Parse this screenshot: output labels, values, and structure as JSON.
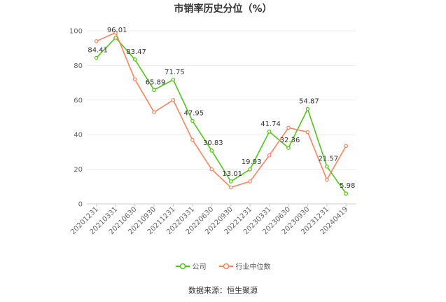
{
  "chart_data": {
    "type": "line",
    "title": "市销率历史分位（%）",
    "categories": [
      "20201231",
      "20210331",
      "20210630",
      "20210930",
      "20211231",
      "20220331",
      "20220630",
      "20220930",
      "20221231",
      "20230331",
      "20230630",
      "20230930",
      "20231231",
      "20240419"
    ],
    "ylim": [
      0,
      100
    ],
    "yticks": [
      0,
      20,
      40,
      60,
      80,
      100
    ],
    "grid": true,
    "legend_position": "bottom",
    "series": [
      {
        "name": "公司",
        "color": "#52c41a",
        "values": [
          84.41,
          96.01,
          83.47,
          65.89,
          71.75,
          47.95,
          30.83,
          13.01,
          19.93,
          41.74,
          32.36,
          54.87,
          21.57,
          5.98
        ],
        "labels": [
          "84.41",
          "96.01",
          "83.47",
          "65.89",
          "71.75",
          "47.95",
          "30.83",
          "13.01",
          "19.93",
          "41.74",
          "32.36",
          "54.87",
          "21.57",
          "5.98"
        ]
      },
      {
        "name": "行业中位数",
        "color": "#f5845f",
        "values": [
          94,
          99,
          72,
          53,
          60,
          37,
          20,
          9.5,
          13,
          28,
          44,
          41.5,
          14,
          33.5
        ]
      }
    ]
  },
  "footer": {
    "source": "数据来源：恒生聚源"
  }
}
